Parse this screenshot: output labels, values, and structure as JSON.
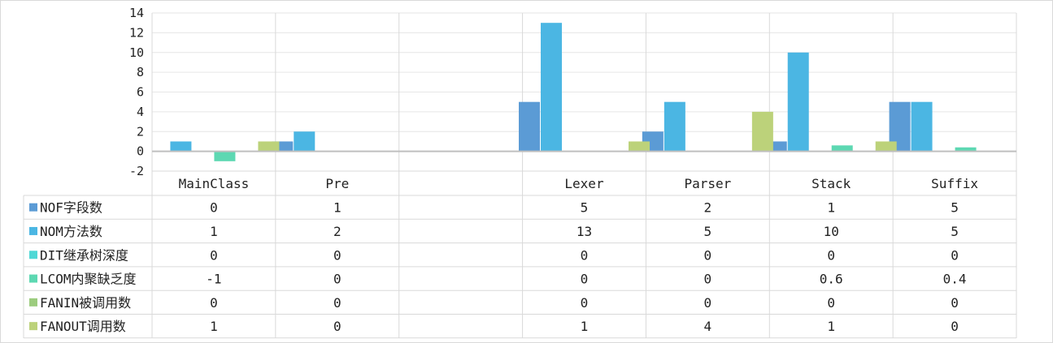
{
  "chart_data": {
    "type": "bar",
    "categories": [
      "MainClass",
      "Pre",
      "",
      "Lexer",
      "Parser",
      "Stack",
      "Suffix"
    ],
    "series": [
      {
        "name": "NOF字段数",
        "color": "#5b9bd5",
        "values": [
          0,
          1,
          null,
          5,
          2,
          1,
          5
        ],
        "labels": [
          "0",
          "1",
          "",
          "5",
          "2",
          "1",
          "5"
        ]
      },
      {
        "name": "NOM方法数",
        "color": "#4bb6e3",
        "values": [
          1,
          2,
          null,
          13,
          5,
          10,
          5
        ],
        "labels": [
          "1",
          "2",
          "",
          "13",
          "5",
          "10",
          "5"
        ]
      },
      {
        "name": "DIT继承树深度",
        "color": "#4fd8d6",
        "values": [
          0,
          0,
          null,
          0,
          0,
          0,
          0
        ],
        "labels": [
          "0",
          "0",
          "",
          "0",
          "0",
          "0",
          "0"
        ]
      },
      {
        "name": "LCOM内聚缺乏度",
        "color": "#5dd8b2",
        "values": [
          -1,
          0,
          null,
          0,
          0,
          0.6,
          0.4
        ],
        "labels": [
          "-1",
          "0",
          "",
          "0",
          "0",
          "0.6",
          "0.4"
        ]
      },
      {
        "name": "FANIN被调用数",
        "color": "#9ccc7e",
        "values": [
          0,
          0,
          null,
          0,
          0,
          0,
          0
        ],
        "labels": [
          "0",
          "0",
          "",
          "0",
          "0",
          "0",
          "0"
        ]
      },
      {
        "name": "FANOUT调用数",
        "color": "#bcd27a",
        "values": [
          1,
          0,
          null,
          1,
          4,
          1,
          0
        ],
        "labels": [
          "1",
          "0",
          "",
          "1",
          "4",
          "1",
          "0"
        ]
      }
    ],
    "y_ticks": [
      "14",
      "12",
      "10",
      "8",
      "6",
      "4",
      "2",
      "0",
      "-2"
    ],
    "ylim": [
      -2,
      14
    ],
    "grid": true,
    "legend": "data-table"
  }
}
